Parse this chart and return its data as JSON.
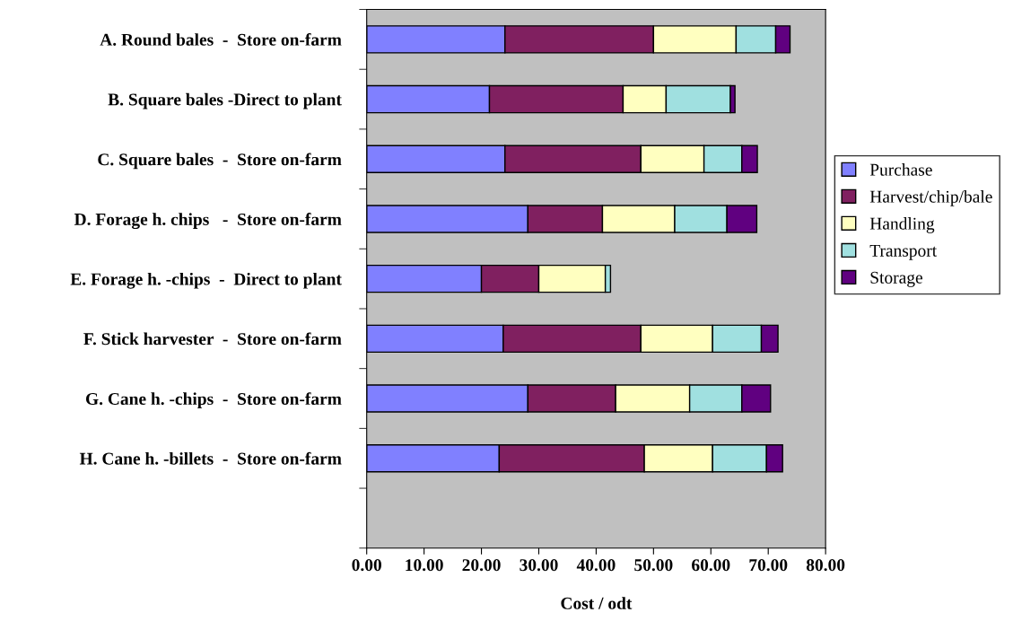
{
  "chart_data": {
    "type": "bar",
    "orientation": "horizontal",
    "stacked": true,
    "xlabel": "Cost / odt",
    "categories": [
      "A. Round bales  -  Store on-farm",
      "B. Square bales -Direct to plant",
      "C. Square bales  -  Store on-farm",
      "D. Forage h. chips   -  Store on-farm",
      "E. Forage h. -chips  -  Direct to plant",
      "F. Stick harvester  -  Store on-farm",
      "G. Cane h. -chips  -  Store on-farm",
      "H. Cane h. -billets  -  Store on-farm",
      null
    ],
    "series": [
      {
        "name": "Purchase",
        "color": "#8080ff",
        "values": [
          24.1,
          21.4,
          24.1,
          28.1,
          20.0,
          23.8,
          28.1,
          23.1,
          null
        ]
      },
      {
        "name": "Harvest/chip/bale",
        "color": "#802060",
        "values": [
          25.9,
          23.3,
          23.7,
          13.0,
          10.0,
          24.0,
          15.3,
          25.3,
          null
        ]
      },
      {
        "name": "Handling",
        "color": "#ffffc0",
        "values": [
          14.4,
          7.5,
          11.0,
          12.6,
          11.6,
          12.5,
          12.9,
          11.9,
          null
        ]
      },
      {
        "name": "Transport",
        "color": "#a0e0e0",
        "values": [
          6.9,
          11.2,
          6.6,
          9.1,
          0.9,
          8.5,
          9.1,
          9.4,
          null
        ]
      },
      {
        "name": "Storage",
        "color": "#600080",
        "values": [
          2.5,
          0.8,
          2.7,
          5.2,
          null,
          2.9,
          5.0,
          2.8,
          null
        ]
      }
    ],
    "xlim": [
      0,
      80
    ],
    "xticks": [
      {
        "value": 0,
        "label": "0.00"
      },
      {
        "value": 10,
        "label": "10.00"
      },
      {
        "value": 20,
        "label": "20.00"
      },
      {
        "value": 30,
        "label": "30.00"
      },
      {
        "value": 40,
        "label": "40.00"
      },
      {
        "value": 50,
        "label": "50.00"
      },
      {
        "value": 60,
        "label": "60.00"
      },
      {
        "value": 70,
        "label": "70.00"
      },
      {
        "value": 80,
        "label": "80.00"
      }
    ],
    "grid": false,
    "legend": "right"
  }
}
